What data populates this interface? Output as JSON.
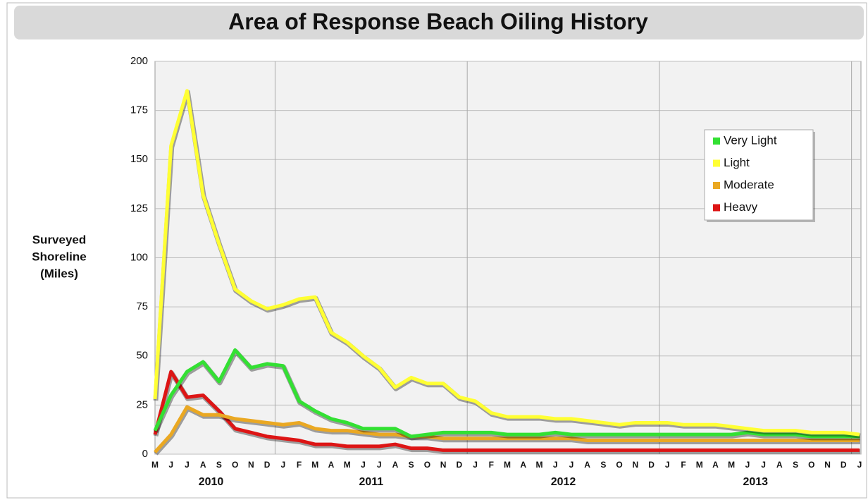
{
  "chart_data": {
    "type": "line",
    "title": "Area of Response Beach Oiling History",
    "ylabel": [
      "Surveyed",
      "Shoreline",
      "(Miles)"
    ],
    "categories": [
      "M",
      "J",
      "J",
      "A",
      "S",
      "O",
      "N",
      "D",
      "J",
      "F",
      "M",
      "A",
      "M",
      "J",
      "J",
      "A",
      "S",
      "O",
      "N",
      "D",
      "J",
      "F",
      "M",
      "A",
      "M",
      "J",
      "J",
      "A",
      "S",
      "O",
      "N",
      "D",
      "J",
      "F",
      "M",
      "A",
      "M",
      "J",
      "J",
      "A",
      "S",
      "O",
      "N",
      "D",
      "J"
    ],
    "year_labels": [
      "2010",
      "2011",
      "2012",
      "2013"
    ],
    "ylim": [
      0,
      200
    ],
    "yticks": [
      0,
      25,
      50,
      75,
      100,
      125,
      150,
      175,
      200
    ],
    "grid": true,
    "legend": "upper right",
    "series": [
      {
        "name": "Very Light",
        "color": "#33e033",
        "values": [
          12,
          30,
          42,
          47,
          37,
          53,
          44,
          46,
          45,
          27,
          22,
          18,
          16,
          13,
          13,
          13,
          9,
          10,
          11,
          11,
          11,
          11,
          10,
          10,
          10,
          11,
          10,
          10,
          10,
          10,
          10,
          10,
          10,
          10,
          10,
          10,
          10,
          11,
          10,
          10,
          10,
          9,
          9,
          9,
          9
        ]
      },
      {
        "name": "Light",
        "color": "#ffff33",
        "values": [
          28,
          157,
          185,
          132,
          107,
          84,
          78,
          74,
          76,
          79,
          80,
          62,
          57,
          50,
          44,
          34,
          39,
          36,
          36,
          29,
          27,
          21,
          19,
          19,
          19,
          18,
          18,
          17,
          16,
          15,
          16,
          16,
          16,
          15,
          15,
          15,
          14,
          13,
          12,
          12,
          12,
          11,
          11,
          11,
          10
        ]
      },
      {
        "name": "Moderate",
        "color": "#eaa822",
        "values": [
          1,
          10,
          24,
          20,
          20,
          18,
          17,
          16,
          15,
          16,
          13,
          12,
          12,
          11,
          10,
          10,
          9,
          9,
          8,
          8,
          8,
          8,
          8,
          8,
          8,
          8,
          8,
          7,
          7,
          7,
          7,
          7,
          7,
          7,
          7,
          7,
          7,
          7,
          7,
          7,
          7,
          7,
          7,
          7,
          7
        ]
      },
      {
        "name": "Heavy",
        "color": "#dd1515",
        "values": [
          10,
          42,
          29,
          30,
          22,
          13,
          11,
          9,
          8,
          7,
          5,
          5,
          4,
          4,
          4,
          5,
          3,
          3,
          2,
          2,
          2,
          2,
          2,
          2,
          2,
          2,
          2,
          2,
          2,
          2,
          2,
          2,
          2,
          2,
          2,
          2,
          2,
          2,
          2,
          2,
          2,
          2,
          2,
          2,
          2
        ]
      }
    ]
  }
}
